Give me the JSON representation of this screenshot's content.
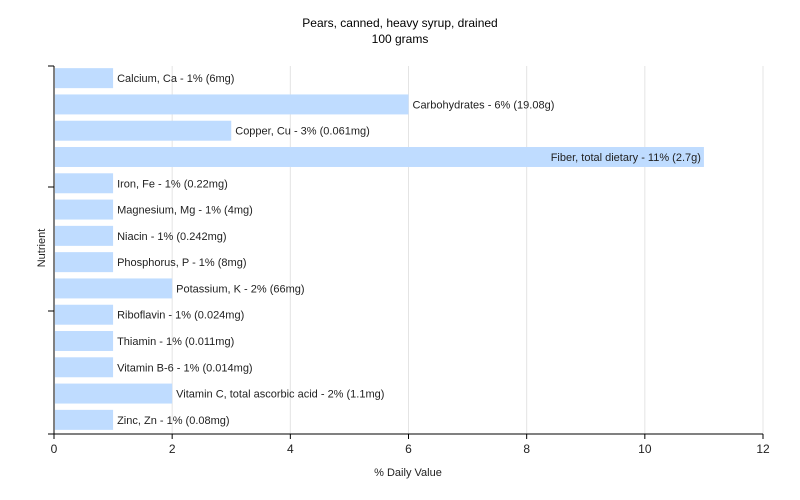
{
  "chart_data": {
    "type": "bar",
    "orientation": "horizontal",
    "title": "Pears, canned, heavy syrup, drained",
    "subtitle": "100 grams",
    "xlabel": "% Daily Value",
    "ylabel": "Nutrient",
    "xlim": [
      0,
      12
    ],
    "xticks": [
      0,
      2,
      4,
      6,
      8,
      10,
      12
    ],
    "grid": true,
    "bar_color": "#bfdcff",
    "categories": [
      "Calcium, Ca",
      "Carbohydrates",
      "Copper, Cu",
      "Fiber, total dietary",
      "Iron, Fe",
      "Magnesium, Mg",
      "Niacin",
      "Phosphorus, P",
      "Potassium, K",
      "Riboflavin",
      "Thiamin",
      "Vitamin B-6",
      "Vitamin C, total ascorbic acid",
      "Zinc, Zn"
    ],
    "values": [
      1,
      6,
      3,
      11,
      1,
      1,
      1,
      1,
      2,
      1,
      1,
      1,
      2,
      1
    ],
    "data_labels": [
      "Calcium, Ca - 1% (6mg)",
      "Carbohydrates - 6% (19.08g)",
      "Copper, Cu - 3% (0.061mg)",
      "Fiber, total dietary - 11% (2.7g)",
      "Iron, Fe - 1% (0.22mg)",
      "Magnesium, Mg - 1% (4mg)",
      "Niacin - 1% (0.242mg)",
      "Phosphorus, P - 1% (8mg)",
      "Potassium, K - 2% (66mg)",
      "Riboflavin - 1% (0.024mg)",
      "Thiamin - 1% (0.011mg)",
      "Vitamin B-6 - 1% (0.014mg)",
      "Vitamin C, total ascorbic acid - 2% (1.1mg)",
      "Zinc, Zn - 1% (0.08mg)"
    ]
  }
}
